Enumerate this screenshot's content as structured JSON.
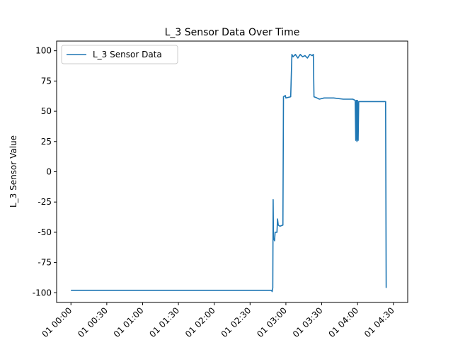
{
  "chart_data": {
    "type": "line",
    "title": "L_3 Sensor Data Over Time",
    "xlabel": "",
    "ylabel": "L_3 Sensor Value",
    "ylim": [
      -108,
      108
    ],
    "xlim_minutes": [
      -12,
      282
    ],
    "x_ticks": [
      {
        "minute": 0,
        "label": "01 00:00"
      },
      {
        "minute": 30,
        "label": "01 00:30"
      },
      {
        "minute": 60,
        "label": "01 01:00"
      },
      {
        "minute": 90,
        "label": "01 01:30"
      },
      {
        "minute": 120,
        "label": "01 02:00"
      },
      {
        "minute": 150,
        "label": "01 02:30"
      },
      {
        "minute": 180,
        "label": "01 03:00"
      },
      {
        "minute": 210,
        "label": "01 03:30"
      },
      {
        "minute": 240,
        "label": "01 04:00"
      },
      {
        "minute": 270,
        "label": "01 04:30"
      }
    ],
    "y_ticks": [
      -100,
      -75,
      -50,
      -25,
      0,
      25,
      50,
      75,
      100
    ],
    "grid": false,
    "legend_position": "top-left",
    "series": [
      {
        "name": "L_3 Sensor Data",
        "color": "#1f77b4",
        "points": [
          [
            0,
            -98
          ],
          [
            168,
            -98
          ],
          [
            168.5,
            -99
          ],
          [
            169,
            -96
          ],
          [
            169.3,
            -23
          ],
          [
            169.6,
            -55
          ],
          [
            170.5,
            -57
          ],
          [
            171,
            -50
          ],
          [
            172.5,
            -50
          ],
          [
            173,
            -39
          ],
          [
            173.6,
            -44
          ],
          [
            175,
            -45
          ],
          [
            177.5,
            -44
          ],
          [
            178,
            62
          ],
          [
            179.5,
            63
          ],
          [
            180,
            61
          ],
          [
            184,
            62
          ],
          [
            185,
            97
          ],
          [
            186,
            95
          ],
          [
            188,
            97
          ],
          [
            190,
            94
          ],
          [
            192,
            97
          ],
          [
            194,
            95
          ],
          [
            196,
            96
          ],
          [
            198,
            94
          ],
          [
            200,
            97
          ],
          [
            202,
            96
          ],
          [
            203,
            97
          ],
          [
            203.5,
            62
          ],
          [
            206,
            61
          ],
          [
            208,
            60
          ],
          [
            212,
            61
          ],
          [
            220,
            61
          ],
          [
            228,
            60
          ],
          [
            236,
            60
          ],
          [
            238,
            59
          ],
          [
            238.5,
            26
          ],
          [
            239,
            59
          ],
          [
            239.5,
            25
          ],
          [
            240,
            59
          ],
          [
            240.5,
            26
          ],
          [
            241,
            58
          ],
          [
            242,
            58
          ],
          [
            250,
            58
          ],
          [
            258,
            58
          ],
          [
            263,
            58
          ],
          [
            263.5,
            58
          ],
          [
            264,
            -96
          ]
        ]
      }
    ]
  }
}
